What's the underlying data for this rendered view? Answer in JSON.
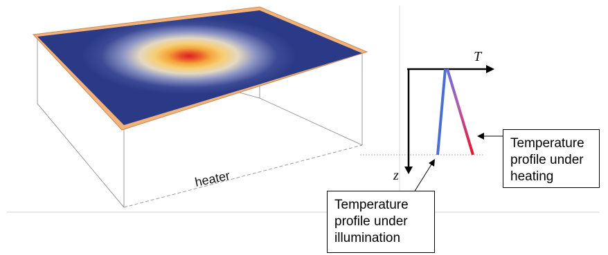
{
  "diagram": {
    "heater_label": "heater",
    "axis_t_label": "T",
    "axis_z_label": "z",
    "callout_heating": [
      "Temperature",
      "profile under",
      "heating"
    ],
    "callout_illumination": [
      "Temperature",
      "profile under",
      "illumination"
    ]
  },
  "colors": {
    "plate_edge": "#f2b27a",
    "plate_base": "#2b3a86",
    "hotspot_center": "#d7221e",
    "illumination_profile": "#4a6fd0",
    "heating_profile_top": "#7a66c8",
    "heating_profile_bottom": "#e2162c"
  }
}
